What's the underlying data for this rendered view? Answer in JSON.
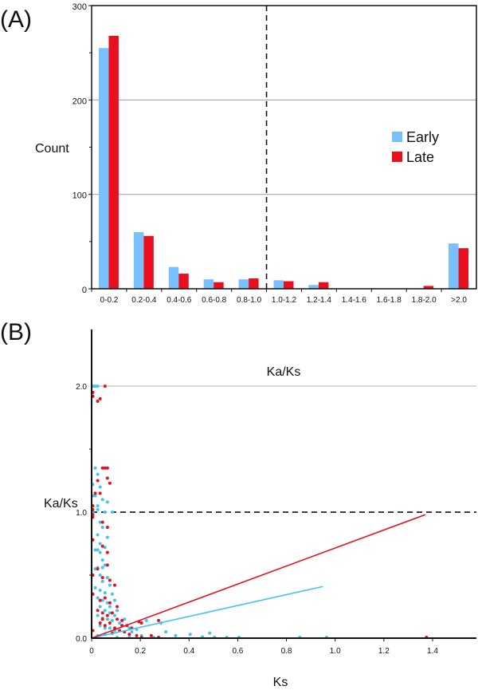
{
  "chart_data": [
    {
      "type": "bar",
      "panel_label": "(A)",
      "title": "",
      "xlabel": "Ka/Ks",
      "ylabel": "Count",
      "ylim": [
        0,
        300
      ],
      "yticks": [
        "0",
        "100",
        "200",
        "300"
      ],
      "grid": true,
      "reference_line": {
        "category_boundary": "0.8-1.0|1.0-1.2",
        "style": "dashed"
      },
      "legend": {
        "placement": "right",
        "entries": [
          "Early",
          "Late"
        ]
      },
      "categories": [
        "0-0.2",
        "0.2-0.4",
        "0.4-0.6",
        "0.6-0.8",
        "0.8-1.0",
        "1.0-1.2",
        "1.2-1.4",
        "1.4-1.6",
        "1.6-1.8",
        "1.8-2.0",
        ">2.0"
      ],
      "series": [
        {
          "name": "Early",
          "color": "#7abfff",
          "values": [
            255,
            60,
            23,
            10,
            10,
            9,
            4,
            0,
            0,
            0,
            48
          ]
        },
        {
          "name": "Late",
          "color": "#e8101e",
          "values": [
            268,
            56,
            16,
            7,
            11,
            8,
            7,
            0,
            0,
            3,
            43
          ]
        }
      ]
    },
    {
      "type": "scatter",
      "panel_label": "(B)",
      "title": "",
      "xlabel": "Ks",
      "ylabel": "Ka/Ks",
      "xlim": [
        0,
        1.58
      ],
      "ylim": [
        0,
        2.45
      ],
      "xticks": [
        "0",
        "0.2",
        "0.4",
        "0.6",
        "0.8",
        "1.0",
        "1.2",
        "1.4"
      ],
      "yticks": [
        "0.0",
        "1.0",
        "2.0"
      ],
      "reference_line": {
        "y": 1.0,
        "style": "dashed"
      },
      "series": [
        {
          "name": "Early",
          "color": "#3fc6f0",
          "points": [
            [
              0.0,
              2.0
            ],
            [
              0.01,
              2.0
            ],
            [
              0.02,
              2.0
            ],
            [
              0.01,
              1.35
            ],
            [
              0.02,
              1.3
            ],
            [
              0.0,
              1.22
            ],
            [
              0.03,
              1.2
            ],
            [
              0.0,
              1.13
            ],
            [
              0.01,
              1.13
            ],
            [
              0.04,
              1.1
            ],
            [
              0.06,
              1.08
            ],
            [
              0.02,
              1.05
            ],
            [
              0.0,
              1.0
            ],
            [
              0.02,
              1.02
            ],
            [
              0.05,
              1.0
            ],
            [
              0.08,
              1.0
            ],
            [
              0.03,
              0.92
            ],
            [
              0.04,
              0.88
            ],
            [
              0.06,
              0.8
            ],
            [
              0.02,
              0.82
            ],
            [
              0.03,
              0.75
            ],
            [
              0.05,
              0.72
            ],
            [
              0.01,
              0.7
            ],
            [
              0.02,
              0.7
            ],
            [
              0.03,
              0.68
            ],
            [
              0.04,
              0.62
            ],
            [
              0.02,
              0.56
            ],
            [
              0.01,
              0.55
            ],
            [
              0.04,
              0.56
            ],
            [
              0.05,
              0.58
            ],
            [
              0.03,
              0.5
            ],
            [
              0.06,
              0.48
            ],
            [
              0.04,
              0.45
            ],
            [
              0.07,
              0.42
            ],
            [
              0.01,
              0.4
            ],
            [
              0.03,
              0.38
            ],
            [
              0.05,
              0.36
            ],
            [
              0.08,
              0.35
            ],
            [
              0.02,
              0.32
            ],
            [
              0.04,
              0.3
            ],
            [
              0.06,
              0.28
            ],
            [
              0.09,
              0.3
            ],
            [
              0.03,
              0.25
            ],
            [
              0.05,
              0.22
            ],
            [
              0.07,
              0.2
            ],
            [
              0.1,
              0.22
            ],
            [
              0.02,
              0.18
            ],
            [
              0.04,
              0.16
            ],
            [
              0.06,
              0.15
            ],
            [
              0.08,
              0.14
            ],
            [
              0.11,
              0.12
            ],
            [
              0.13,
              0.15
            ],
            [
              0.03,
              0.1
            ],
            [
              0.05,
              0.08
            ],
            [
              0.07,
              0.08
            ],
            [
              0.09,
              0.06
            ],
            [
              0.12,
              0.1
            ],
            [
              0.15,
              0.08
            ],
            [
              0.18,
              0.07
            ],
            [
              0.22,
              0.14
            ],
            [
              0.28,
              0.12
            ],
            [
              0.3,
              0.05
            ],
            [
              0.34,
              0.02
            ],
            [
              0.4,
              0.03
            ],
            [
              0.45,
              0.01
            ],
            [
              0.48,
              0.04
            ],
            [
              0.2,
              0.02
            ],
            [
              0.25,
              0.0
            ],
            [
              0.5,
              0.0
            ],
            [
              0.6,
              0.0
            ],
            [
              0.85,
              0.0
            ],
            [
              0.96,
              0.0
            ],
            [
              0.55,
              0.0
            ],
            [
              0.1,
              0.0
            ],
            [
              0.15,
              0.0
            ],
            [
              0.07,
              0.25
            ],
            [
              0.09,
              0.18
            ],
            [
              0.16,
              0.05
            ],
            [
              0.02,
              0.02
            ],
            [
              0.05,
              0.03
            ]
          ],
          "trend": [
            [
              0,
              0
            ],
            [
              0.95,
              0.41
            ]
          ]
        },
        {
          "name": "Late",
          "color": "#e8101e",
          "points": [
            [
              0.0,
              1.95
            ],
            [
              0.0,
              1.92
            ],
            [
              0.02,
              1.88
            ],
            [
              0.03,
              1.9
            ],
            [
              0.05,
              2.0
            ],
            [
              0.04,
              1.35
            ],
            [
              0.05,
              1.35
            ],
            [
              0.06,
              1.35
            ],
            [
              0.06,
              1.27
            ],
            [
              0.02,
              1.25
            ],
            [
              0.07,
              1.23
            ],
            [
              0.01,
              1.15
            ],
            [
              0.03,
              1.15
            ],
            [
              0.0,
              1.05
            ],
            [
              0.0,
              1.02
            ],
            [
              0.0,
              0.98
            ],
            [
              0.0,
              0.96
            ],
            [
              0.04,
              0.92
            ],
            [
              0.06,
              0.88
            ],
            [
              0.0,
              0.78
            ],
            [
              0.04,
              0.73
            ],
            [
              0.06,
              0.68
            ],
            [
              0.06,
              0.58
            ],
            [
              0.02,
              0.55
            ],
            [
              0.0,
              0.5
            ],
            [
              0.04,
              0.48
            ],
            [
              0.07,
              0.46
            ],
            [
              0.09,
              0.42
            ],
            [
              0.0,
              0.35
            ],
            [
              0.03,
              0.3
            ],
            [
              0.05,
              0.32
            ],
            [
              0.07,
              0.28
            ],
            [
              0.1,
              0.25
            ],
            [
              0.02,
              0.22
            ],
            [
              0.04,
              0.2
            ],
            [
              0.06,
              0.18
            ],
            [
              0.08,
              0.2
            ],
            [
              0.1,
              0.15
            ],
            [
              0.12,
              0.14
            ],
            [
              0.14,
              0.1
            ],
            [
              0.16,
              0.08
            ],
            [
              0.19,
              0.13
            ],
            [
              0.2,
              0.12
            ],
            [
              0.27,
              0.14
            ],
            [
              0.03,
              0.12
            ],
            [
              0.05,
              0.1
            ],
            [
              0.07,
              0.12
            ],
            [
              0.09,
              0.08
            ],
            [
              0.11,
              0.06
            ],
            [
              0.13,
              0.05
            ],
            [
              0.15,
              0.03
            ],
            [
              0.18,
              0.02
            ],
            [
              0.0,
              0.06
            ],
            [
              0.08,
              0.04
            ],
            [
              0.24,
              0.02
            ],
            [
              0.2,
              0.0
            ],
            [
              0.27,
              0.0
            ],
            [
              1.37,
              0.0
            ],
            [
              0.04,
              0.15
            ],
            [
              0.12,
              0.1
            ]
          ],
          "trend": [
            [
              0,
              0
            ],
            [
              1.37,
              0.98
            ]
          ]
        }
      ]
    }
  ]
}
